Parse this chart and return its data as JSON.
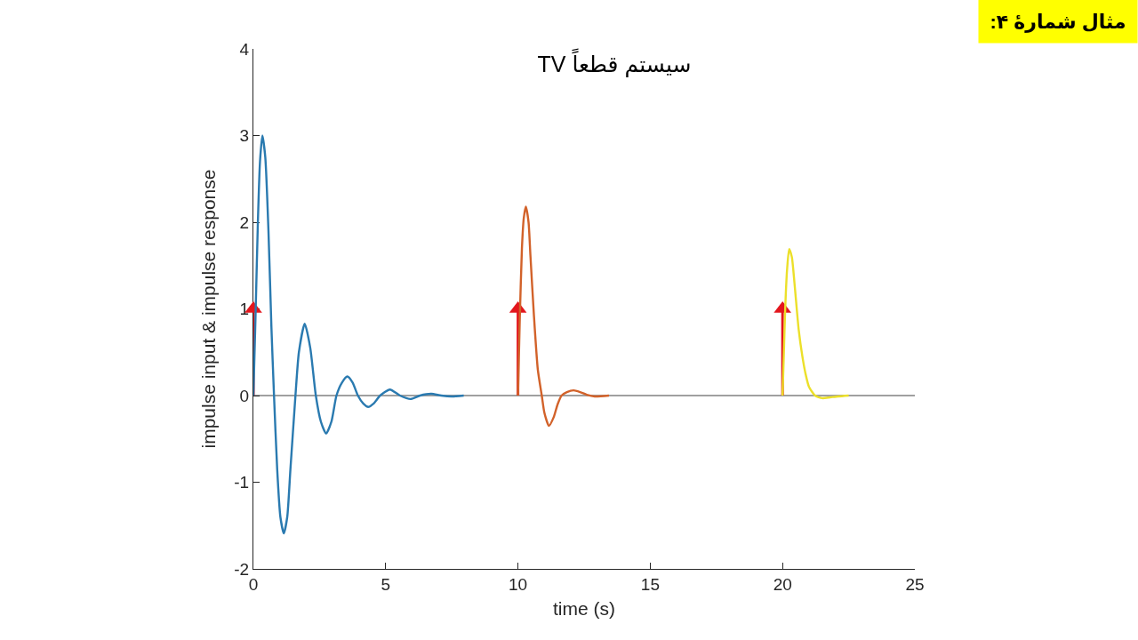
{
  "chart_data": {
    "type": "line",
    "title": "سیستم قطعاً TV",
    "xlabel": "time (s)",
    "ylabel": "impulse input & impulse response",
    "xlim": [
      0,
      25
    ],
    "xticks": [
      0,
      5,
      10,
      15,
      20,
      25
    ],
    "ylim": [
      -2,
      4
    ],
    "yticks": [
      -2,
      -1,
      0,
      1,
      2,
      3,
      4
    ],
    "series": [
      {
        "type": "lollipop",
        "color": "#e3161d",
        "marker": "triangle",
        "x": [
          0,
          10,
          20
        ],
        "values": [
          1,
          1,
          1
        ]
      },
      {
        "color": "#2a7ab0",
        "x": [
          0,
          0.08,
          0.17,
          0.25,
          0.34,
          0.45,
          0.57,
          0.68,
          0.78,
          0.9,
          1.02,
          1.15,
          1.28,
          1.4,
          1.59,
          1.72,
          1.94,
          2.15,
          2.36,
          2.55,
          2.75,
          2.95,
          3.14,
          3.35,
          3.55,
          3.75,
          3.95,
          4.15,
          4.34,
          4.55,
          4.79,
          5.16,
          5.54,
          5.94,
          6.3,
          6.72,
          7.1,
          7.5,
          7.95
        ],
        "values": [
          0,
          0.9,
          2.0,
          2.7,
          3.0,
          2.75,
          1.9,
          0.8,
          0,
          -0.85,
          -1.4,
          -1.59,
          -1.4,
          -0.85,
          0,
          0.5,
          0.83,
          0.55,
          0,
          -0.3,
          -0.44,
          -0.3,
          0,
          0.15,
          0.22,
          0.15,
          0,
          -0.09,
          -0.13,
          -0.09,
          0,
          0.07,
          0,
          -0.04,
          0,
          0.02,
          0,
          -0.01,
          0
        ]
      },
      {
        "color": "#d2622a",
        "x": [
          10,
          10.07,
          10.15,
          10.22,
          10.3,
          10.4,
          10.47,
          10.6,
          10.75,
          10.9,
          11.0,
          11.17,
          11.35,
          11.5,
          11.65,
          11.85,
          12.1,
          12.35,
          12.6,
          12.9,
          13.44
        ],
        "values": [
          0,
          0.9,
          1.7,
          2.05,
          2.18,
          2.0,
          1.62,
          0.94,
          0.3,
          0,
          -0.2,
          -0.35,
          -0.25,
          -0.1,
          0,
          0.04,
          0.06,
          0.04,
          0.01,
          -0.01,
          0
        ]
      },
      {
        "color": "#ece02a",
        "x": [
          20,
          20.05,
          20.1,
          20.17,
          20.25,
          20.35,
          20.45,
          20.61,
          20.75,
          20.87,
          21.0,
          21.23,
          21.5,
          21.8,
          22.1,
          22.5
        ],
        "values": [
          0,
          0.5,
          1.0,
          1.45,
          1.69,
          1.6,
          1.3,
          0.76,
          0.45,
          0.25,
          0.1,
          0,
          -0.03,
          -0.02,
          -0.01,
          0
        ]
      }
    ],
    "ref_lines": [
      {
        "axis": "y",
        "value": 0,
        "color": "#808080"
      }
    ],
    "annotations": [
      "مثال شمارهٔ ۴:"
    ]
  }
}
